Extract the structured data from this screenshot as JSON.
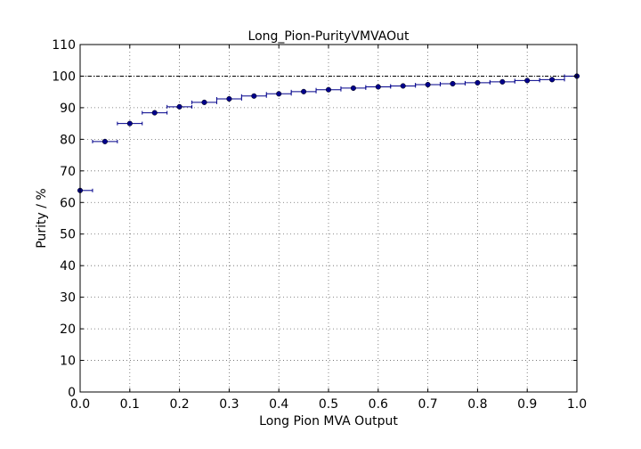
{
  "chart_data": {
    "type": "scatter",
    "title": "Long_Pion-PurityVMVAOut",
    "xlabel": "Long Pion MVA Output",
    "ylabel": "Purity / %",
    "xlim": [
      0.0,
      1.0
    ],
    "ylim": [
      0,
      110
    ],
    "x_ticks": [
      "0.0",
      "0.1",
      "0.2",
      "0.3",
      "0.4",
      "0.5",
      "0.6",
      "0.7",
      "0.8",
      "0.9",
      "1.0"
    ],
    "y_ticks": [
      "0",
      "10",
      "20",
      "30",
      "40",
      "50",
      "60",
      "70",
      "80",
      "90",
      "100",
      "110"
    ],
    "grid": true,
    "reference_line": {
      "y": 100,
      "style": "dashed",
      "color": "#000000"
    },
    "x_error": 0.025,
    "series": [
      {
        "color": "#00008b",
        "x": [
          0.0,
          0.05,
          0.1,
          0.15,
          0.2,
          0.25,
          0.3,
          0.35,
          0.4,
          0.45,
          0.5,
          0.55,
          0.6,
          0.65,
          0.7,
          0.75,
          0.8,
          0.85,
          0.9,
          0.95,
          1.0
        ],
        "y": [
          63.8,
          79.3,
          85.0,
          88.4,
          90.3,
          91.7,
          92.8,
          93.7,
          94.4,
          95.1,
          95.7,
          96.2,
          96.6,
          96.9,
          97.3,
          97.6,
          97.9,
          98.2,
          98.6,
          98.9,
          100.0
        ]
      }
    ]
  }
}
